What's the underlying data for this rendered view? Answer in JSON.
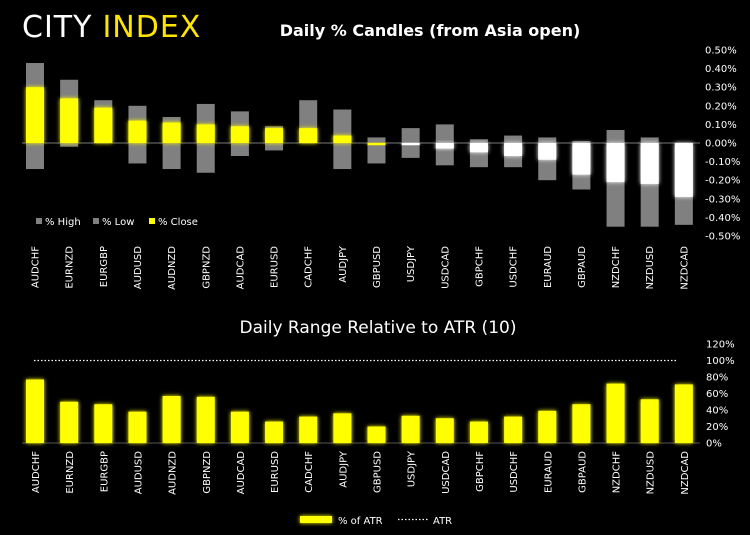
{
  "header": {
    "logo_word1": "CITY",
    "logo_word2": "INDEX"
  },
  "colors": {
    "background": "#000000",
    "accent": "#ffff00",
    "range_bar": "#808080",
    "positive": "#ffff00",
    "negative": "#ffffff"
  },
  "chart_data": [
    {
      "type": "bar",
      "title": "Daily % Candles (from Asia open)",
      "categories": [
        "AUDCHF",
        "EURNZD",
        "EURGBP",
        "AUDUSD",
        "AUDNZD",
        "GBPNZD",
        "AUDCAD",
        "EURUSD",
        "CADCHF",
        "AUDJPY",
        "GBPUSD",
        "USDJPY",
        "USDCAD",
        "GBPCHF",
        "USDCHF",
        "EURAUD",
        "GBPAUD",
        "NZDCHF",
        "NZDUSD",
        "NZDCAD"
      ],
      "series": [
        {
          "name": "% High",
          "values": [
            0.43,
            0.34,
            0.23,
            0.2,
            0.14,
            0.21,
            0.17,
            0.09,
            0.23,
            0.18,
            0.03,
            0.08,
            0.1,
            0.02,
            0.04,
            0.03,
            0.01,
            0.07,
            0.03,
            0.0
          ]
        },
        {
          "name": "% Low",
          "values": [
            -0.14,
            -0.02,
            0.0,
            -0.11,
            -0.14,
            -0.16,
            -0.07,
            -0.04,
            0.0,
            -0.14,
            -0.11,
            -0.08,
            -0.12,
            -0.13,
            -0.13,
            -0.2,
            -0.25,
            -0.45,
            -0.45,
            -0.44
          ]
        },
        {
          "name": "% Close",
          "values": [
            0.3,
            0.24,
            0.19,
            0.12,
            0.11,
            0.1,
            0.09,
            0.08,
            0.08,
            0.04,
            0.0,
            -0.01,
            -0.03,
            -0.05,
            -0.07,
            -0.09,
            -0.17,
            -0.21,
            -0.22,
            -0.29
          ]
        }
      ],
      "y_ticks": [
        "0.50%",
        "0.40%",
        "0.30%",
        "0.20%",
        "0.10%",
        "0.00%",
        "-0.10%",
        "-0.20%",
        "-0.30%",
        "-0.40%",
        "-0.50%"
      ],
      "ylim": [
        -0.5,
        0.5
      ],
      "legend": [
        "% High",
        "% Low",
        "% Close"
      ],
      "legend_position": "bottom-left"
    },
    {
      "type": "bar",
      "title": "Daily Range Relative to ATR (10)",
      "categories": [
        "AUDCHF",
        "EURNZD",
        "EURGBP",
        "AUDUSD",
        "AUDNZD",
        "GBPNZD",
        "AUDCAD",
        "EURUSD",
        "CADCHF",
        "AUDJPY",
        "GBPUSD",
        "USDJPY",
        "USDCAD",
        "GBPCHF",
        "USDCHF",
        "EURAUD",
        "GBPAUD",
        "NZDCHF",
        "NZDUSD",
        "NZDCAD"
      ],
      "series": [
        {
          "name": "% of ATR",
          "values": [
            77,
            50,
            47,
            38,
            57,
            56,
            38,
            26,
            32,
            36,
            20,
            33,
            30,
            26,
            32,
            39,
            47,
            72,
            53,
            71
          ]
        },
        {
          "name": "ATR",
          "values": [
            100,
            100,
            100,
            100,
            100,
            100,
            100,
            100,
            100,
            100,
            100,
            100,
            100,
            100,
            100,
            100,
            100,
            100,
            100,
            100
          ]
        }
      ],
      "y_ticks": [
        "120%",
        "100%",
        "80%",
        "60%",
        "40%",
        "20%",
        "0%"
      ],
      "ylim": [
        0,
        120
      ],
      "legend": [
        "% of ATR",
        "ATR"
      ],
      "legend_position": "bottom-center"
    }
  ]
}
